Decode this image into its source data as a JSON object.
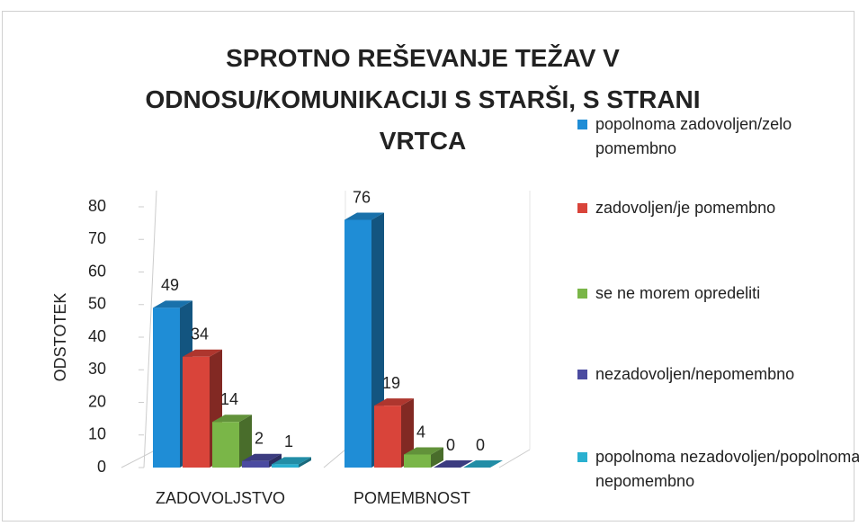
{
  "chart_data": {
    "type": "bar",
    "title": "SPROTNO REŠEVANJE  TEŽAV V ODNOSU/KOMUNIKACIJI S STARŠI, S STRANI VRTCA",
    "ylabel": "ODSTOTEK",
    "categories": [
      "ZADOVOLJSTVO",
      "POMEMBNOST"
    ],
    "series": [
      {
        "name": "popolnoma zadovoljen/zelo pomembno",
        "color": "#1f8dd6",
        "values": [
          49,
          76
        ]
      },
      {
        "name": "zadovoljen/je pomembno",
        "color": "#d9443a",
        "values": [
          34,
          19
        ]
      },
      {
        "name": "se ne morem opredeliti",
        "color": "#7ab648",
        "values": [
          14,
          4
        ]
      },
      {
        "name": "nezadovoljen/nepomembno",
        "color": "#4b4ba0",
        "values": [
          2,
          0
        ]
      },
      {
        "name": "popolnoma nezadovoljen/popolnoma nepomembno",
        "color": "#2ab0d0",
        "values": [
          1,
          0
        ]
      }
    ],
    "ylim": [
      0,
      80
    ],
    "yticks": [
      0,
      10,
      20,
      30,
      40,
      50,
      60,
      70,
      80
    ]
  }
}
